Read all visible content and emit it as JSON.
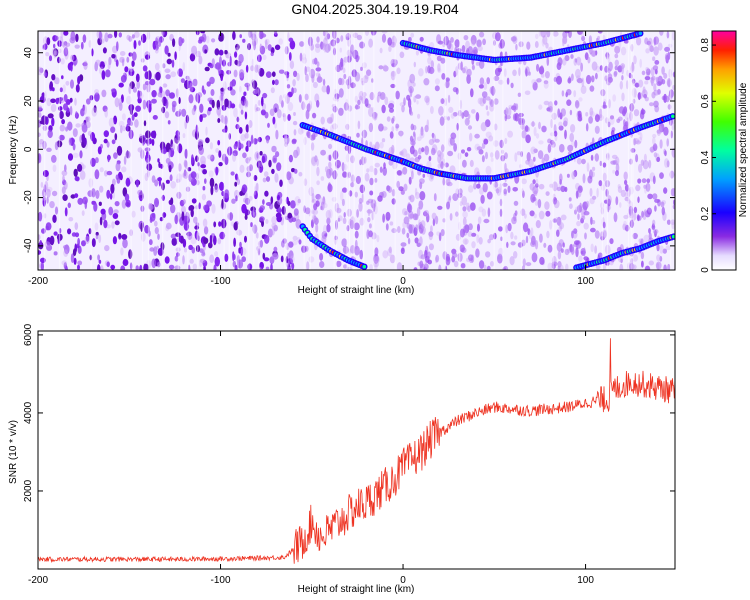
{
  "title": "GN04.2025.304.19.19.R04",
  "colors": {
    "snr_line": "#ee3322",
    "heatmap_background": "#f4efff",
    "speckle": "#7a22ee",
    "track": [
      "#2200ff",
      "#00aaff",
      "#00ff88",
      "#ffdd00",
      "#ff3300"
    ]
  },
  "chart_data": [
    {
      "type": "heatmap",
      "title": "GN04.2025.304.19.19.R04",
      "xlabel": "Height of straight line (km)",
      "ylabel": "Frequency (Hz)",
      "xlim": [
        -200,
        149
      ],
      "ylim": [
        -50,
        49
      ],
      "xticks": [
        "-200",
        "-100",
        "0",
        "100"
      ],
      "xtick_values": [
        -200,
        -100,
        0,
        100
      ],
      "yticks": [
        "40",
        "20",
        "0",
        "-20",
        "-40"
      ],
      "ytick_values": [
        40,
        20,
        0,
        -20,
        -40
      ],
      "colorbar": {
        "label": "Normalized spectral amplitude",
        "range": [
          0,
          0.85
        ],
        "ticks": [
          "0",
          "0.2",
          "0.4",
          "0.6",
          "0.8"
        ],
        "tick_values": [
          0,
          0.2,
          0.4,
          0.6,
          0.8
        ]
      },
      "tracks": [
        {
          "x": [
            -55,
            -40,
            -20,
            0,
            10,
            20,
            35,
            50,
            70,
            90,
            110,
            130,
            149
          ],
          "y": [
            10,
            6,
            0,
            -5,
            -8,
            -10,
            -12,
            -12,
            -9,
            -4,
            3,
            9,
            14
          ]
        },
        {
          "x": [
            0,
            15,
            30,
            50,
            70,
            90,
            110,
            120,
            130
          ],
          "y": [
            44,
            41,
            39,
            37,
            38,
            41,
            44,
            46,
            48
          ]
        },
        {
          "x": [
            -55,
            -50,
            -40,
            -30,
            -20
          ],
          "y": [
            -32,
            -37,
            -42,
            -46,
            -49
          ]
        },
        {
          "x": [
            95,
            110,
            120,
            130,
            140,
            149
          ],
          "y": [
            -49,
            -46,
            -43,
            -41,
            -38,
            -36
          ]
        }
      ]
    },
    {
      "type": "line",
      "xlabel": "Height of straight line (km)",
      "ylabel": "SNR (10 * v/v)",
      "xlim": [
        -200,
        149
      ],
      "ylim": [
        0,
        6100
      ],
      "xticks": [
        "-200",
        "-100",
        "0",
        "100"
      ],
      "xtick_values": [
        -200,
        -100,
        0,
        100
      ],
      "yticks": [
        "2000",
        "4000",
        "6000"
      ],
      "ytick_values": [
        2000,
        4000,
        6000
      ],
      "series": [
        {
          "x": [
            -200,
            -180,
            -160,
            -140,
            -120,
            -100,
            -80,
            -65,
            -55,
            -50,
            -45,
            -40,
            -35,
            -30,
            -25,
            -20,
            -15,
            -10,
            -5,
            0,
            5,
            10,
            15,
            20,
            30,
            40,
            50,
            60,
            70,
            80,
            90,
            100,
            105,
            110,
            112,
            115,
            120,
            125,
            130,
            140,
            149
          ],
          "y": [
            250,
            250,
            250,
            250,
            250,
            260,
            280,
            300,
            700,
            1200,
            800,
            1000,
            1200,
            1400,
            1600,
            1700,
            1900,
            2100,
            2300,
            2600,
            2800,
            3000,
            3300,
            3500,
            3800,
            4000,
            4150,
            4100,
            4050,
            4100,
            4150,
            4250,
            4300,
            4350,
            4200,
            4600,
            4700,
            4800,
            4750,
            4650,
            4550
          ]
        }
      ]
    }
  ]
}
